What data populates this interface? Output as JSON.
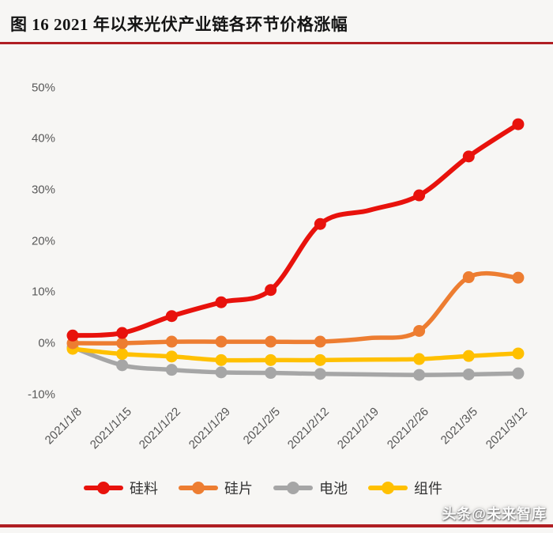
{
  "colors": {
    "background": "#f7f6f4",
    "accent_rule": "#b01e23",
    "axis_text": "#595959"
  },
  "watermark": {
    "text": "头条@未来智库"
  },
  "chart_data": {
    "type": "line",
    "title": "图 16 2021 年以来光伏产业链各环节价格涨幅",
    "xlabel": "",
    "ylabel": "",
    "x_labels": [
      "2021/1/8",
      "2021/1/15",
      "2021/1/22",
      "2021/1/29",
      "2021/2/5",
      "2021/2/12",
      "2021/2/19",
      "2021/2/26",
      "2021/3/5",
      "2021/3/12"
    ],
    "y_ticks": [
      {
        "value": 50,
        "label": "50%"
      },
      {
        "value": 40,
        "label": "40%"
      },
      {
        "value": 30,
        "label": "30%"
      },
      {
        "value": 20,
        "label": "20%"
      },
      {
        "value": 10,
        "label": "10%"
      },
      {
        "value": 0,
        "label": "0%"
      },
      {
        "value": -10,
        "label": "-10%"
      }
    ],
    "ylim": [
      -10,
      50
    ],
    "grid": false,
    "smooth_lines": true,
    "legend_position": "bottom",
    "marker_skip_indices": [
      6
    ],
    "series": [
      {
        "name": "硅料",
        "color": "#e8120c",
        "values": [
          1.5,
          2,
          5.3,
          8,
          10.4,
          23.3,
          26,
          28.9,
          36.5,
          42.8
        ]
      },
      {
        "name": "硅片",
        "color": "#ed7d31",
        "values": [
          0,
          0,
          0.3,
          0.3,
          0.3,
          0.3,
          1,
          2.4,
          12.9,
          12.8
        ]
      },
      {
        "name": "电池",
        "color": "#a6a6a6",
        "values": [
          -0.8,
          -4.3,
          -5.2,
          -5.7,
          -5.8,
          -6.0,
          -6.1,
          -6.2,
          -6.1,
          -5.9
        ]
      },
      {
        "name": "组件",
        "color": "#ffc000",
        "values": [
          -1.1,
          -2.1,
          -2.6,
          -3.3,
          -3.3,
          -3.3,
          -3.2,
          -3.1,
          -2.5,
          -2.0
        ]
      }
    ]
  }
}
